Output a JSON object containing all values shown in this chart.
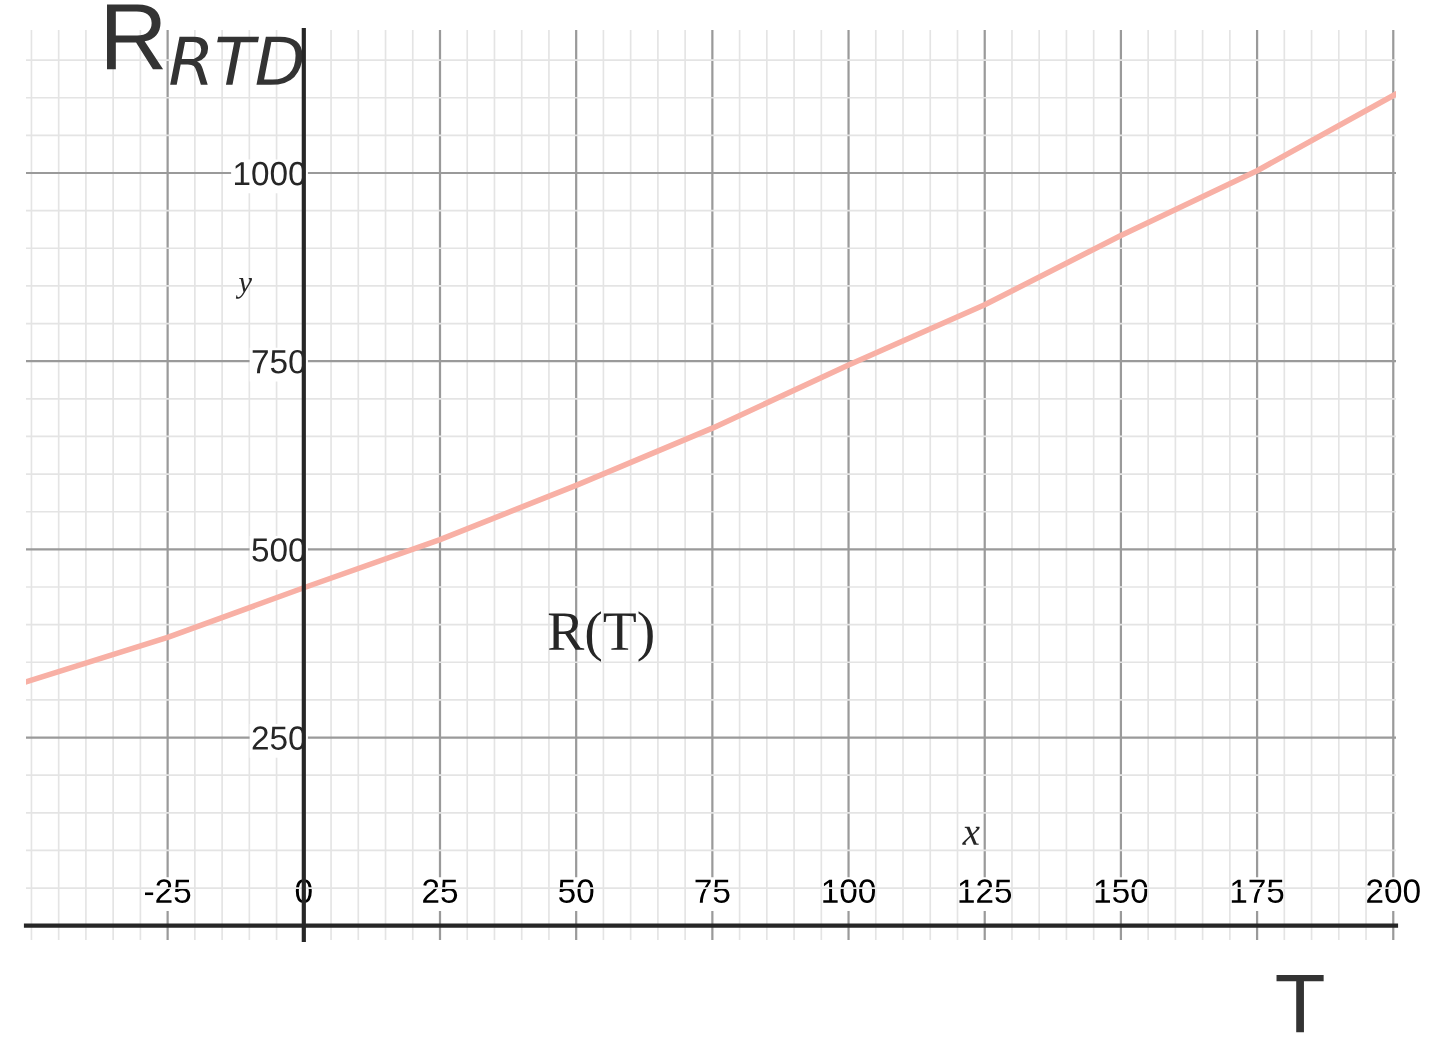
{
  "chart_data": {
    "type": "line",
    "xlabel": "T",
    "ylabel": "R$_{RTD}$",
    "annotations": [
      "x",
      "y"
    ],
    "x": [
      -51,
      -25,
      0,
      25,
      50,
      75,
      100,
      125,
      150,
      175,
      200.5
    ],
    "series": [
      {
        "name": "R(T)",
        "color": "#f8b0a5",
        "values": [
          324,
          383,
          449,
          513,
          585,
          661,
          745,
          825,
          917,
          1003,
          1105
        ]
      }
    ],
    "xlim": [
      -51,
      200.5
    ],
    "ylim": [
      -19,
      1190
    ],
    "xticks": [
      -25,
      0,
      25,
      50,
      75,
      100,
      125,
      150,
      175,
      200
    ],
    "yticks": [
      250,
      500,
      750,
      1000
    ],
    "grid": true,
    "marker": "none",
    "line_style": "solid"
  }
}
